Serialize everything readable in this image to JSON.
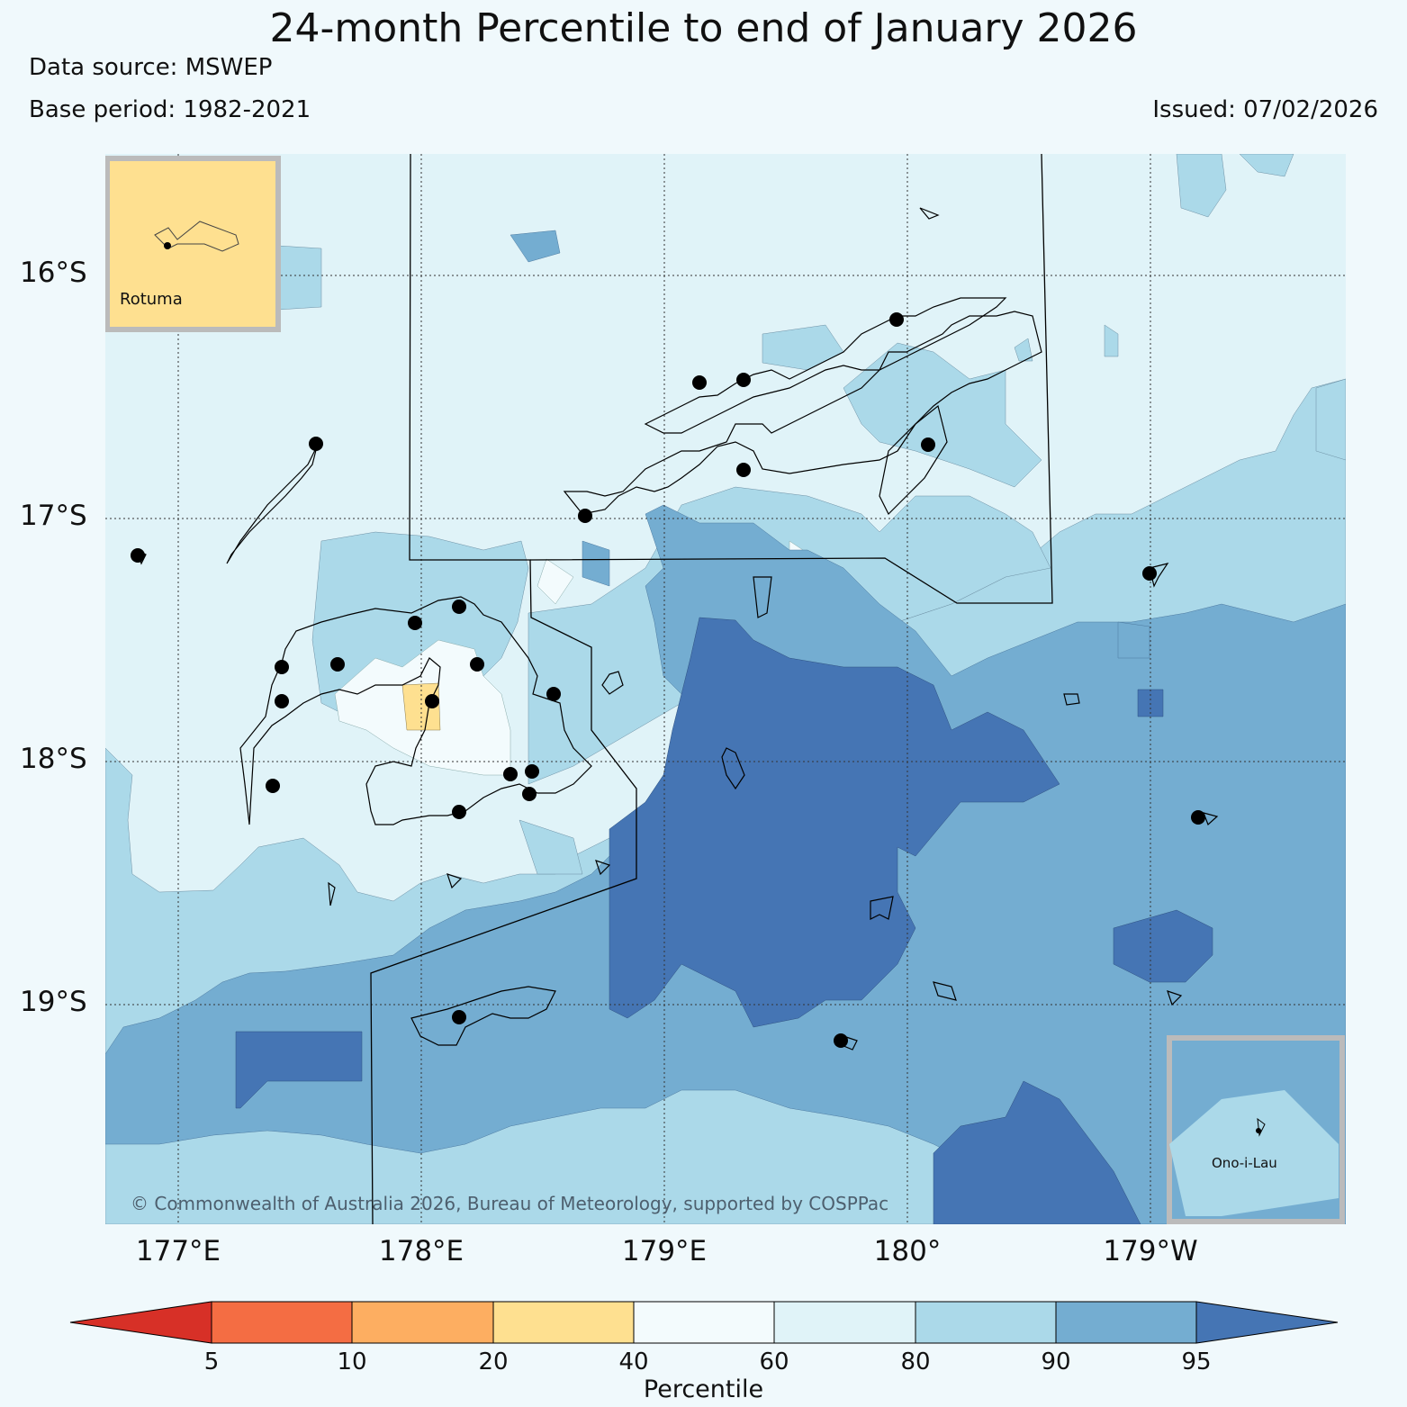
{
  "title": "24-month Percentile to end of January 2026",
  "source": "Data source: MSWEP",
  "base_period": "Base period: 1982-2021",
  "issued": "Issued: 07/02/2026",
  "lat_labels": [
    "16°S",
    "17°S",
    "18°S",
    "19°S"
  ],
  "lon_labels": [
    "177°E",
    "178°E",
    "179°E",
    "180°",
    "179°W"
  ],
  "copyright": "© Commonwealth of Australia 2026, Bureau of Meteorology, supported by COSPPac",
  "insets": {
    "rotuma": "Rotuma",
    "ono_i_lau": "Ono-i-Lau"
  },
  "legend": {
    "label": "Percentile",
    "ticks": [
      "5",
      "10",
      "20",
      "40",
      "60",
      "80",
      "90",
      "95"
    ],
    "colors": {
      "below_5": "#d73027",
      "p5_10": "#f46d43",
      "p10_20": "#fdae61",
      "p20_40": "#fee090",
      "p40_60": "#f3fbfd",
      "p60_80": "#e0f3f8",
      "p80_90": "#abd9e9",
      "p90_95": "#74add1",
      "above_95": "#4575b4"
    }
  }
}
